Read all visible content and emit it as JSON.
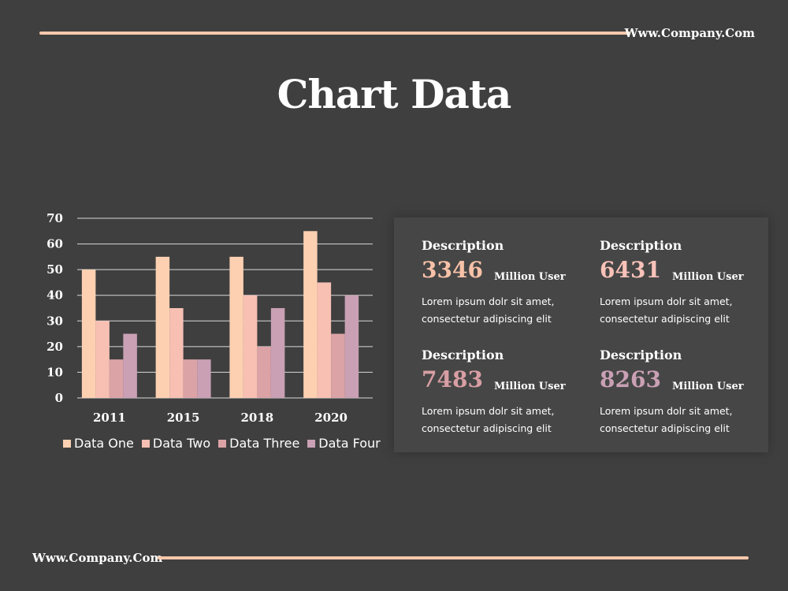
{
  "header": {
    "company": "Www.Company.Com"
  },
  "footer": {
    "company": "Www.Company.Com"
  },
  "title": "Chart Data",
  "chart_data": {
    "type": "bar",
    "categories": [
      "2011",
      "2015",
      "2018",
      "2020"
    ],
    "series": [
      {
        "name": "Data One",
        "values": [
          50,
          55,
          55,
          65
        ],
        "color": "#fdd0b1"
      },
      {
        "name": "Data Two",
        "values": [
          30,
          35,
          40,
          45
        ],
        "color": "#f7c0b3"
      },
      {
        "name": "Data Three",
        "values": [
          15,
          15,
          20,
          25
        ],
        "color": "#dba3a6"
      },
      {
        "name": "Data Four",
        "values": [
          25,
          15,
          35,
          40
        ],
        "color": "#c9a0b4"
      }
    ],
    "yticks": [
      "0",
      "10",
      "20",
      "30",
      "40",
      "50",
      "60",
      "70"
    ],
    "ylim": [
      0,
      70
    ],
    "grid": true,
    "legend_position": "bottom"
  },
  "stats": [
    {
      "label": "Description",
      "value": "3346",
      "unit": "Million User",
      "color": "#f8c2a8",
      "desc_line1": "Lorem ipsum dolr sit amet,",
      "desc_line2": "consectetur adipiscing elit"
    },
    {
      "label": "Description",
      "value": "6431",
      "unit": "Million User",
      "color": "#f8c2b8",
      "desc_line1": "Lorem ipsum dolr sit amet,",
      "desc_line2": "consectetur adipiscing elit"
    },
    {
      "label": "Description",
      "value": "7483",
      "unit": "Million User",
      "color": "#d79ea3",
      "desc_line1": "Lorem ipsum dolr sit amet,",
      "desc_line2": "consectetur adipiscing elit"
    },
    {
      "label": "Description",
      "value": "8263",
      "unit": "Million User",
      "color": "#c9a0b4",
      "desc_line1": "Lorem ipsum dolr sit amet,",
      "desc_line2": "consectetur adipiscing elit"
    }
  ]
}
